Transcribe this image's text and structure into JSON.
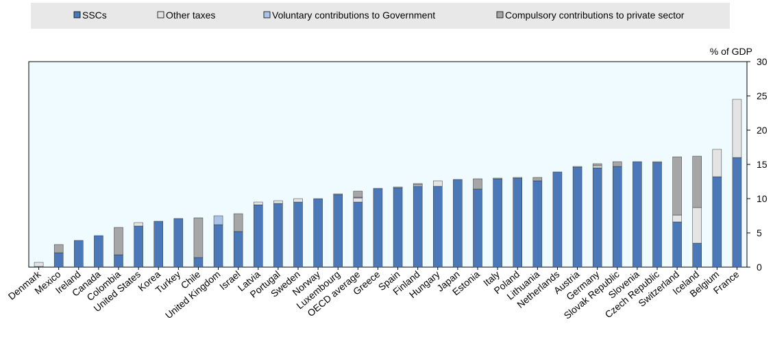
{
  "chart_data": {
    "type": "stacked_bar",
    "y_label": "% of GDP",
    "categories": [
      "Denmark",
      "Mexico",
      "Ireland",
      "Canada",
      "Colombia",
      "United States",
      "Korea",
      "Turkey",
      "Chile",
      "United Kingdom",
      "Israel",
      "Latvia",
      "Portugal",
      "Sweden",
      "Norway",
      "Luxembourg",
      "OECD average",
      "Greece",
      "Spain",
      "Finland",
      "Hungary",
      "Japan",
      "Estonia",
      "Italy",
      "Poland",
      "Lithuania",
      "Netherlands",
      "Austria",
      "Germany",
      "Slovak Republic",
      "Slovenia",
      "Czech Republic",
      "Switzerland",
      "Iceland",
      "Belgium",
      "France"
    ],
    "series": [
      {
        "name": "SSCs",
        "color": "#4a78b8",
        "values": [
          0.1,
          2.1,
          3.9,
          4.6,
          1.8,
          6.0,
          6.7,
          7.1,
          1.4,
          6.2,
          5.2,
          9.1,
          9.3,
          9.5,
          10.0,
          10.6,
          9.5,
          11.5,
          11.6,
          11.8,
          11.8,
          12.8,
          11.4,
          12.9,
          13.0,
          12.6,
          13.9,
          14.6,
          14.5,
          14.7,
          15.4,
          15.3,
          6.6,
          3.5,
          13.2,
          16.0
        ]
      },
      {
        "name": "Other taxes",
        "color": "#e4e4e4",
        "values": [
          0.6,
          0,
          0,
          0,
          0,
          0.5,
          0,
          0,
          0,
          0,
          0,
          0.4,
          0.4,
          0.5,
          0,
          0.1,
          0.6,
          0,
          0.1,
          0.2,
          0.8,
          0,
          0,
          0.1,
          0.1,
          0,
          0,
          0.1,
          0.3,
          0,
          0,
          0.1,
          1.0,
          5.2,
          4.0,
          8.5
        ]
      },
      {
        "name": "Voluntary contributions to Government",
        "color": "#a9c4e8",
        "values": [
          0,
          0,
          0,
          0,
          0,
          0,
          0,
          0,
          0,
          1.3,
          0,
          0,
          0,
          0,
          0,
          0,
          0.1,
          0,
          0,
          0,
          0,
          0,
          0,
          0,
          0,
          0,
          0,
          0,
          0,
          0,
          0,
          0,
          0,
          0,
          0,
          0
        ]
      },
      {
        "name": "Compulsory contributions to private sector",
        "color": "#a6a6a6",
        "values": [
          0,
          1.2,
          0,
          0,
          4.0,
          0,
          0,
          0,
          5.8,
          0,
          2.6,
          0,
          0,
          0,
          0,
          0,
          0.9,
          0,
          0,
          0.2,
          0,
          0,
          1.5,
          0,
          0,
          0.5,
          0,
          0,
          0.3,
          0.7,
          0,
          0,
          8.5,
          7.5,
          0,
          0
        ]
      }
    ],
    "ylim": [
      0,
      30
    ],
    "yticks": [
      0,
      5,
      10,
      15,
      20,
      25,
      30
    ]
  }
}
